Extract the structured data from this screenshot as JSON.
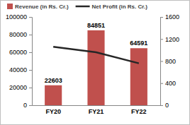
{
  "chart_data": {
    "type": "bar",
    "categories": [
      "FY20",
      "FY21",
      "FY22"
    ],
    "series": [
      {
        "name": "Revenue (in Rs. Cr.)",
        "type": "bar",
        "color": "#c0504d",
        "values": [
          22603,
          84851,
          64591
        ],
        "data_labels": true
      },
      {
        "name": "Net Profit (in Rs. Cr.)",
        "type": "line",
        "color": "#262626",
        "axis": "y2",
        "values": [
          1060,
          960,
          760
        ]
      }
    ],
    "ylim": [
      0,
      100000
    ],
    "yticks": [
      0,
      20000,
      40000,
      60000,
      80000,
      100000
    ],
    "y2lim": [
      0,
      1600
    ],
    "y2ticks": [
      0,
      400,
      800,
      1200,
      1600
    ],
    "legend": "top"
  }
}
